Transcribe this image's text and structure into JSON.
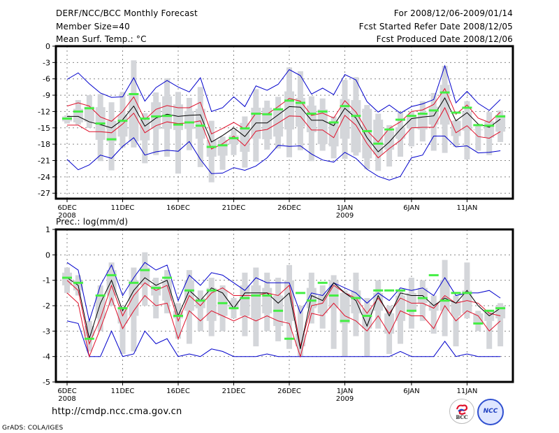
{
  "header": {
    "title": "DERF/NCC/BCC Monthly Forecast",
    "member_size": "Member Size=40",
    "for_range": "For 2008/12/06-2009/01/14",
    "started_refer": "Fcst Started Refer Date 2008/12/05",
    "produced": "Fcst Produced Date 2008/12/06"
  },
  "footer": {
    "url": "http://cmdp.ncc.cma.gov.cn",
    "grads": "GrADS: COLA/IGES",
    "logo_left": "BCC",
    "logo_right": "NCC"
  },
  "colors": {
    "envelope": "#0000cc",
    "spread": "#e0102a",
    "mean": "#000000",
    "observed": "#44ee44",
    "box": "#d4d6da",
    "grid": "#888888"
  },
  "chart_data": [
    {
      "type": "line",
      "title": "Mean Surf. Temp.: °C",
      "ylabel": "°C",
      "ylim": [
        -28,
        0
      ],
      "yticks": [
        0,
        -3,
        -6,
        -9,
        -12,
        -15,
        -18,
        -21,
        -24,
        -27
      ],
      "ytick_labels": [
        "0",
        "-3",
        "-6",
        "-9",
        "-12",
        "-15",
        "-18",
        "-21",
        "-24",
        "-27"
      ],
      "xtick_days": [
        0,
        5,
        10,
        15,
        20,
        25,
        31,
        36
      ],
      "xtick_labels": [
        "6DEC",
        "11DEC",
        "16DEC",
        "21DEC",
        "26DEC",
        "1JAN",
        "6JAN",
        "11JAN"
      ],
      "xtick_year_labels": [
        "2008",
        "",
        "",
        "",
        "",
        "2009",
        "",
        ""
      ],
      "grid": true,
      "x_start": "2008-12-06",
      "days": 40,
      "series": [
        {
          "name": "max",
          "values": [
            -6.1,
            -4.9,
            -6.9,
            -8.6,
            -9.4,
            -9.3,
            -5.8,
            -10.1,
            -7.6,
            -6.3,
            -7.5,
            -8.4,
            -5.8,
            -12.0,
            -11.3,
            -9.3,
            -11.1,
            -7.3,
            -8.1,
            -7.0,
            -4.3,
            -5.4,
            -8.8,
            -7.7,
            -8.9,
            -5.2,
            -6.2,
            -10.2,
            -12.1,
            -10.8,
            -12.3,
            -11.1,
            -10.6,
            -9.8,
            -3.6,
            -10.4,
            -8.3,
            -10.5,
            -11.8,
            -9.8
          ]
        },
        {
          "name": "upper",
          "values": [
            -11.0,
            -10.4,
            -11.0,
            -13.0,
            -13.8,
            -12.0,
            -9.3,
            -13.5,
            -11.6,
            -10.9,
            -11.3,
            -11.3,
            -10.3,
            -16.1,
            -15.1,
            -14.0,
            -15.2,
            -12.3,
            -12.5,
            -11.1,
            -9.6,
            -10.1,
            -12.7,
            -12.3,
            -13.2,
            -10.0,
            -12.1,
            -15.5,
            -17.6,
            -15.1,
            -13.9,
            -12.0,
            -11.7,
            -10.7,
            -7.8,
            -12.5,
            -10.8,
            -13.2,
            -14.0,
            -12.1
          ]
        },
        {
          "name": "mean",
          "values": [
            -12.9,
            -12.9,
            -13.9,
            -14.4,
            -15.0,
            -13.5,
            -11.0,
            -14.7,
            -13.2,
            -12.5,
            -12.9,
            -12.7,
            -12.6,
            -17.6,
            -16.4,
            -15.0,
            -16.6,
            -14.1,
            -14.1,
            -12.6,
            -11.1,
            -11.2,
            -13.6,
            -13.6,
            -14.6,
            -11.4,
            -13.2,
            -16.8,
            -19.4,
            -17.6,
            -15.3,
            -13.3,
            -13.0,
            -12.8,
            -9.5,
            -13.7,
            -12.2,
            -14.3,
            -14.9,
            -13.4
          ]
        },
        {
          "name": "lower",
          "values": [
            -14.5,
            -14.5,
            -15.7,
            -15.7,
            -15.9,
            -14.3,
            -12.3,
            -15.9,
            -14.6,
            -13.9,
            -14.2,
            -14.1,
            -13.7,
            -18.9,
            -17.9,
            -16.5,
            -18.3,
            -15.6,
            -15.3,
            -14.1,
            -12.8,
            -12.9,
            -15.4,
            -15.4,
            -16.8,
            -12.7,
            -14.5,
            -17.9,
            -20.5,
            -18.8,
            -17.3,
            -15.0,
            -14.9,
            -14.9,
            -11.3,
            -15.9,
            -14.6,
            -16.6,
            -16.9,
            -15.7
          ]
        },
        {
          "name": "min",
          "values": [
            -20.8,
            -22.7,
            -21.8,
            -20.0,
            -20.6,
            -18.4,
            -16.8,
            -20.0,
            -19.4,
            -19.1,
            -19.3,
            -17.5,
            -20.8,
            -23.4,
            -23.3,
            -22.3,
            -22.8,
            -22.0,
            -20.5,
            -18.2,
            -18.4,
            -18.3,
            -19.8,
            -20.9,
            -21.3,
            -19.5,
            -20.6,
            -22.6,
            -23.9,
            -24.6,
            -23.9,
            -20.5,
            -20.0,
            -16.5,
            -16.5,
            -18.5,
            -18.3,
            -19.6,
            -19.5,
            -19.2
          ]
        },
        {
          "name": "box_low",
          "values": [
            -14.2,
            -14.4,
            -15.0,
            -21.1,
            -22.8,
            -18.6,
            -18.6,
            -21.5,
            -20.0,
            -20.3,
            -23.4,
            -19.1,
            -22.2,
            -25.0,
            -22.7,
            -20.0,
            -22.3,
            -21.2,
            -19.0,
            -18.8,
            -20.4,
            -19.1,
            -21.1,
            -19.2,
            -20.6,
            -20.7,
            -20.1,
            -22.6,
            -22.9,
            -22.1,
            -20.3,
            -18.4,
            -17.5,
            -19.2,
            -19.6,
            -18.5,
            -20.8,
            -19.2,
            -20.0,
            -17.6
          ]
        },
        {
          "name": "box_high",
          "values": [
            -12.7,
            -9.9,
            -9.0,
            -8.8,
            -10.3,
            -8.4,
            -2.6,
            -12.3,
            -8.5,
            -5.9,
            -8.4,
            -9.5,
            -7.5,
            -13.7,
            -16.6,
            -15.3,
            -12.9,
            -7.9,
            -10.0,
            -9.3,
            -3.9,
            -4.6,
            -9.2,
            -9.6,
            -12.9,
            -6.2,
            -5.7,
            -10.8,
            -12.4,
            -14.5,
            -12.1,
            -12.1,
            -10.1,
            -8.6,
            -3.6,
            -13.6,
            -10.1,
            -14.4,
            -12.1,
            -11.8
          ]
        },
        {
          "name": "q1",
          "values": [
            -13.8,
            -14.0,
            -13.9,
            -17.2,
            -17.5,
            -16.6,
            -17.5,
            -17.3,
            -15.2,
            -15.2,
            -15.4,
            -15.2,
            -17.0,
            -20.3,
            -20.1,
            -18.0,
            -19.4,
            -17.0,
            -17.1,
            -16.6,
            -15.3,
            -14.8,
            -15.8,
            -18.0,
            -18.4,
            -17.0,
            -19.5,
            -20.6,
            -19.9,
            -19.0,
            -17.0,
            -15.1,
            -15.3,
            -14.4,
            -14.4,
            -16.5,
            -15.5,
            -14.7,
            -16.8,
            -15.7
          ]
        },
        {
          "name": "q3",
          "values": [
            -12.9,
            -11.5,
            -11.1,
            -11.2,
            -13.7,
            -12.6,
            -9.0,
            -13.3,
            -10.3,
            -9.2,
            -10.7,
            -11.9,
            -11.5,
            -17.2,
            -17.2,
            -16.4,
            -14.1,
            -11.3,
            -11.3,
            -11.4,
            -8.3,
            -9.5,
            -10.9,
            -11.6,
            -14.0,
            -9.7,
            -9.9,
            -11.5,
            -13.5,
            -15.6,
            -14.9,
            -13.0,
            -12.6,
            -11.1,
            -7.1,
            -13.7,
            -12.1,
            -15.3,
            -13.8,
            -12.6
          ]
        },
        {
          "name": "observed",
          "values": [
            -13.3,
            -12.0,
            -11.4,
            -14.2,
            -17.1,
            -13.7,
            -8.8,
            -13.3,
            -12.9,
            -12.8,
            -14.4,
            -14.0,
            -14.6,
            -18.5,
            -18.2,
            -16.9,
            -15.1,
            -12.4,
            -12.5,
            -11.6,
            -10.0,
            -10.4,
            -12.4,
            -12.0,
            -14.0,
            -11.0,
            -12.8,
            -15.6,
            -17.9,
            -15.3,
            -13.5,
            -12.8,
            -12.4,
            -11.8,
            -8.5,
            -12.2,
            -11.3,
            -14.5,
            -14.6,
            -12.9
          ]
        }
      ]
    },
    {
      "type": "line",
      "title": "Prec.: log(mm/d)",
      "ylabel": "log(mm/d)",
      "ylim": [
        -5,
        1
      ],
      "yticks": [
        1,
        0,
        -1,
        -2,
        -3,
        -4,
        -5
      ],
      "ytick_labels": [
        "1",
        "0",
        "-1",
        "-2",
        "-3",
        "-4",
        "-5"
      ],
      "xtick_days": [
        0,
        5,
        10,
        15,
        20,
        25,
        31,
        36
      ],
      "xtick_labels": [
        "6DEC",
        "11DEC",
        "16DEC",
        "21DEC",
        "26DEC",
        "1JAN",
        "6JAN",
        "11JAN"
      ],
      "xtick_year_labels": [
        "2008",
        "",
        "",
        "",
        "",
        "2009",
        "",
        ""
      ],
      "grid": true,
      "x_start": "2008-12-06",
      "days": 40,
      "series": [
        {
          "name": "max",
          "values": [
            -0.3,
            -0.6,
            -2.6,
            -1.2,
            -0.4,
            -1.6,
            -0.9,
            -0.3,
            -0.6,
            -0.4,
            -1.8,
            -0.8,
            -1.2,
            -0.7,
            -0.8,
            -1.1,
            -1.4,
            -0.9,
            -1.1,
            -1.1,
            -1.1,
            -2.3,
            -1.5,
            -1.6,
            -1.1,
            -1.3,
            -1.5,
            -1.9,
            -1.5,
            -1.8,
            -1.3,
            -1.4,
            -1.3,
            -1.6,
            -0.9,
            -1.6,
            -1.5,
            -1.5,
            -1.4,
            -1.7
          ]
        },
        {
          "name": "upper",
          "values": [
            -1.0,
            -1.4,
            -3.5,
            -2.5,
            -1.2,
            -2.4,
            -1.6,
            -1.1,
            -1.4,
            -1.2,
            -2.6,
            -1.6,
            -2.0,
            -1.5,
            -1.3,
            -1.6,
            -1.6,
            -1.6,
            -1.5,
            -1.6,
            -1.2,
            -3.6,
            -2.0,
            -1.9,
            -1.2,
            -1.5,
            -1.7,
            -2.3,
            -1.7,
            -2.3,
            -1.7,
            -1.9,
            -1.9,
            -2.1,
            -1.6,
            -1.9,
            -1.8,
            -1.9,
            -2.3,
            -2.4
          ]
        },
        {
          "name": "mean",
          "values": [
            -0.9,
            -1.2,
            -3.3,
            -1.9,
            -1.0,
            -2.2,
            -1.4,
            -0.9,
            -1.2,
            -1.0,
            -2.4,
            -1.4,
            -1.8,
            -1.3,
            -1.5,
            -2.1,
            -1.5,
            -1.5,
            -1.5,
            -1.9,
            -1.5,
            -3.7,
            -1.6,
            -1.8,
            -1.1,
            -1.5,
            -1.8,
            -2.8,
            -1.6,
            -2.4,
            -1.5,
            -1.6,
            -1.6,
            -2.0,
            -1.7,
            -1.9,
            -1.4,
            -2.0,
            -2.4,
            -2.1
          ]
        },
        {
          "name": "lower",
          "values": [
            -1.5,
            -1.9,
            -4.0,
            -2.9,
            -1.7,
            -2.9,
            -2.2,
            -1.6,
            -2.0,
            -1.9,
            -3.3,
            -2.2,
            -2.6,
            -2.2,
            -2.4,
            -2.6,
            -2.4,
            -2.6,
            -2.4,
            -2.6,
            -2.7,
            -4.0,
            -2.3,
            -2.4,
            -1.9,
            -2.4,
            -2.6,
            -3.0,
            -2.4,
            -3.1,
            -2.2,
            -2.4,
            -2.4,
            -2.9,
            -2.0,
            -2.6,
            -2.2,
            -2.4,
            -3.0,
            -2.6
          ]
        },
        {
          "name": "min",
          "values": [
            -2.6,
            -2.7,
            -4.0,
            -4.0,
            -3.0,
            -4.0,
            -3.9,
            -3.0,
            -3.5,
            -3.3,
            -4.0,
            -3.9,
            -4.0,
            -3.7,
            -3.8,
            -4.0,
            -4.0,
            -4.0,
            -3.9,
            -4.0,
            -4.0,
            -4.0,
            -4.0,
            -4.0,
            -4.0,
            -4.0,
            -4.0,
            -4.0,
            -4.0,
            -4.0,
            -3.8,
            -4.0,
            -4.0,
            -4.0,
            -3.4,
            -4.0,
            -3.9,
            -4.0,
            -4.0,
            -4.0
          ]
        },
        {
          "name": "box_low",
          "values": [
            -1.5,
            -1.6,
            -3.8,
            -3.0,
            -2.0,
            -3.9,
            -3.8,
            -2.0,
            -2.5,
            -2.3,
            -3.3,
            -3.5,
            -3.0,
            -3.2,
            -3.0,
            -2.5,
            -3.2,
            -3.6,
            -3.0,
            -3.4,
            -3.7,
            -4.0,
            -2.7,
            -2.9,
            -3.7,
            -4.0,
            -3.2,
            -4.0,
            -2.9,
            -3.9,
            -3.5,
            -2.9,
            -2.6,
            -3.1,
            -3.2,
            -3.6,
            -2.5,
            -3.0,
            -3.7,
            -3.6
          ]
        },
        {
          "name": "box_high",
          "values": [
            -0.5,
            -0.8,
            -2.6,
            -1.2,
            -0.3,
            -2.0,
            -0.5,
            0.1,
            -0.9,
            -0.6,
            -1.9,
            -0.6,
            -1.4,
            -0.9,
            -1.2,
            -1.7,
            -0.7,
            -0.5,
            -0.7,
            -0.9,
            -0.4,
            -2.0,
            -0.7,
            -1.2,
            -0.8,
            -1.4,
            -0.7,
            -1.7,
            -1.0,
            -2.0,
            -1.4,
            -0.9,
            -1.0,
            -1.6,
            -0.2,
            -1.6,
            -0.3,
            -2.2,
            -2.6,
            -1.9
          ]
        },
        {
          "name": "q1",
          "values": [
            -1.2,
            -1.4,
            -3.2,
            -2.5,
            -1.6,
            -2.7,
            -2.4,
            -1.2,
            -1.6,
            -1.8,
            -2.5,
            -2.2,
            -2.1,
            -2.6,
            -2.4,
            -2.1,
            -2.4,
            -2.5,
            -2.3,
            -2.8,
            -2.6,
            -3.6,
            -2.1,
            -2.3,
            -2.1,
            -2.7,
            -2.3,
            -2.9,
            -2.2,
            -3.1,
            -2.6,
            -2.2,
            -1.9,
            -2.2,
            -2.2,
            -2.4,
            -2.3,
            -2.7,
            -2.6,
            -2.5
          ]
        },
        {
          "name": "q3",
          "values": [
            -0.7,
            -1.0,
            -2.8,
            -1.6,
            -0.6,
            -2.1,
            -1.0,
            -0.5,
            -1.2,
            -1.0,
            -2.2,
            -1.0,
            -1.7,
            -1.3,
            -1.4,
            -1.8,
            -1.2,
            -1.2,
            -1.3,
            -1.6,
            -1.0,
            -3.1,
            -1.3,
            -1.6,
            -1.0,
            -1.5,
            -1.4,
            -2.1,
            -1.5,
            -2.3,
            -1.6,
            -1.5,
            -1.3,
            -1.9,
            -1.0,
            -1.8,
            -1.4,
            -2.3,
            -2.2,
            -2.0
          ]
        },
        {
          "name": "observed",
          "values": [
            -0.9,
            -1.1,
            -3.3,
            -1.6,
            -0.8,
            -2.1,
            -1.1,
            -0.6,
            -1.3,
            -0.9,
            -2.4,
            -1.4,
            -1.8,
            -1.4,
            -1.9,
            -2.1,
            -1.7,
            -1.6,
            -1.6,
            -2.2,
            -3.3,
            -1.5,
            -1.8,
            -1.1,
            -1.6,
            -2.6,
            -1.7,
            -2.4,
            -1.4,
            -1.4,
            -1.4,
            -2.2,
            -1.7,
            -0.8,
            -1.8,
            -1.5,
            -1.5,
            -2.7,
            -2.2,
            -2.1
          ]
        }
      ]
    }
  ]
}
